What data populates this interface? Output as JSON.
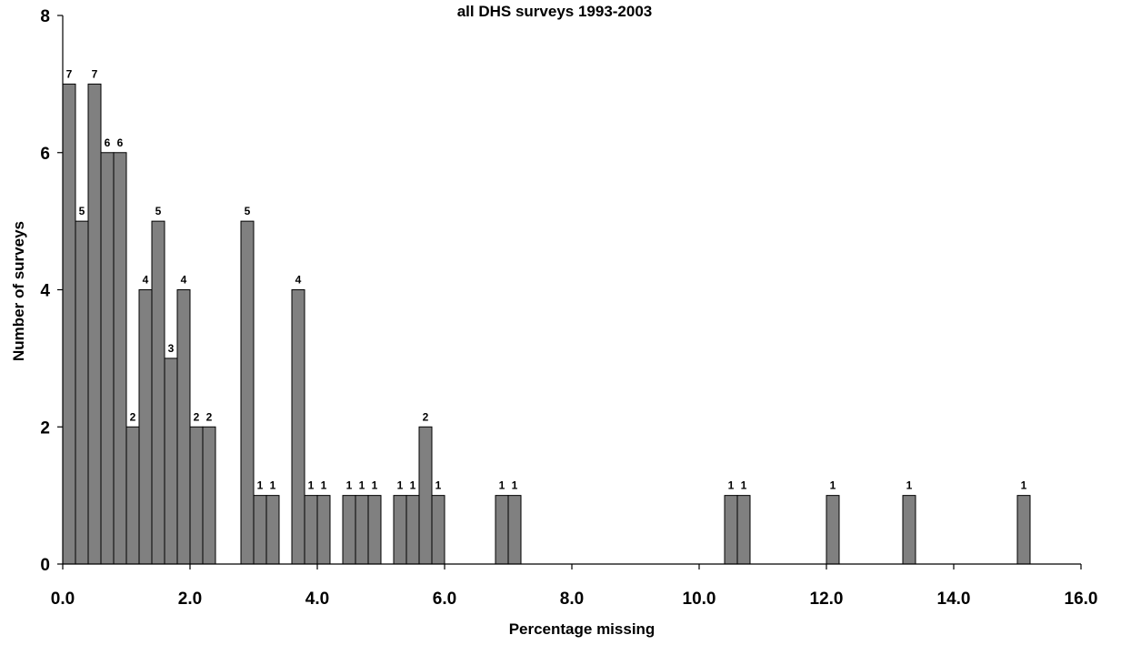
{
  "chart_data": {
    "type": "bar",
    "title": "all DHS surveys 1993-2003",
    "xlabel": "Percentage missing",
    "ylabel": "Number of surveys",
    "xlim": [
      0,
      16
    ],
    "ylim": [
      0,
      8
    ],
    "x_ticks": [
      "0.0",
      "2.0",
      "4.0",
      "6.0",
      "8.0",
      "10.0",
      "12.0",
      "14.0",
      "16.0"
    ],
    "y_ticks": [
      "0",
      "2",
      "4",
      "6",
      "8"
    ],
    "grid": false,
    "legend": "none",
    "bar_color": "#808080",
    "bin_width": 0.2,
    "bars": [
      {
        "x": 0.0,
        "value": 7
      },
      {
        "x": 0.2,
        "value": 5
      },
      {
        "x": 0.4,
        "value": 7
      },
      {
        "x": 0.6,
        "value": 6
      },
      {
        "x": 0.8,
        "value": 6
      },
      {
        "x": 1.0,
        "value": 2
      },
      {
        "x": 1.2,
        "value": 4
      },
      {
        "x": 1.4,
        "value": 5
      },
      {
        "x": 1.6,
        "value": 3
      },
      {
        "x": 1.8,
        "value": 4
      },
      {
        "x": 2.0,
        "value": 2
      },
      {
        "x": 2.2,
        "value": 2
      },
      {
        "x": 2.8,
        "value": 5
      },
      {
        "x": 3.0,
        "value": 1
      },
      {
        "x": 3.2,
        "value": 1
      },
      {
        "x": 3.6,
        "value": 4
      },
      {
        "x": 3.8,
        "value": 1
      },
      {
        "x": 4.0,
        "value": 1
      },
      {
        "x": 4.4,
        "value": 1
      },
      {
        "x": 4.6,
        "value": 1
      },
      {
        "x": 4.8,
        "value": 1
      },
      {
        "x": 5.2,
        "value": 1
      },
      {
        "x": 5.4,
        "value": 1
      },
      {
        "x": 5.6,
        "value": 2
      },
      {
        "x": 5.8,
        "value": 1
      },
      {
        "x": 6.8,
        "value": 1
      },
      {
        "x": 7.0,
        "value": 1
      },
      {
        "x": 10.4,
        "value": 1
      },
      {
        "x": 10.6,
        "value": 1
      },
      {
        "x": 12.0,
        "value": 1
      },
      {
        "x": 13.2,
        "value": 1
      },
      {
        "x": 15.0,
        "value": 1
      }
    ]
  }
}
